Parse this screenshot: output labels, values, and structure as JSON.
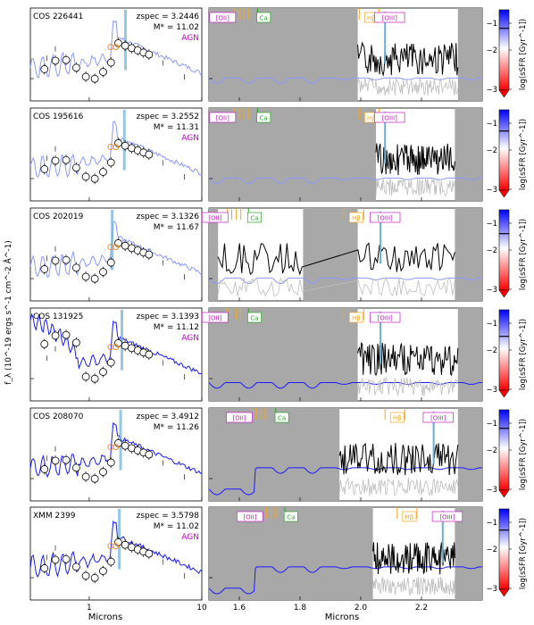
{
  "figure": {
    "ylabel": "f_λ (10^-19 ergs s^-1 cm^-2 Å^-1)",
    "xlabel_left": "Microns",
    "xlabel_right": "Microns",
    "colorbar_label": "log(sSFR [Gyr^-1])",
    "colorbar_ticks": [
      "−1",
      "−2",
      "−3"
    ],
    "colors": {
      "photometry_model_light": "#8c98ff",
      "photometry_model_dark": "#1a1aff",
      "spectrum": "#000000",
      "spectrum_error": "#bdbdbd",
      "masked_region": "#a8a8a8",
      "emission_line": "#6aaed6",
      "balmer_marker": "#f5a623",
      "ca_marker": "#2ca02c",
      "oxygen_marker": "#c020c0",
      "agn_text": "#cc00cc",
      "colorbar_top": "#0000ff",
      "colorbar_bottom": "#ff0000"
    }
  },
  "chart_data": [
    {
      "type": "scatter",
      "panel": "photometry",
      "xscale": "log",
      "xlim": [
        0.3,
        10
      ],
      "x_ticks": [
        "1",
        "10"
      ],
      "xlabel": "Microns",
      "galaxies": [
        {
          "id": "COS 226441",
          "zspec": "3.2446",
          "mass": "11.02",
          "agn": true
        },
        {
          "id": "COS 195616",
          "zspec": "3.2552",
          "mass": "11.31",
          "agn": true
        },
        {
          "id": "COS 202019",
          "zspec": "3.1326",
          "mass": "11.67",
          "agn": false
        },
        {
          "id": "COS 131925",
          "zspec": "3.1393",
          "mass": "11.12",
          "agn": true
        },
        {
          "id": "COS 208070",
          "zspec": "3.4912",
          "mass": "11.26",
          "agn": false
        },
        {
          "id": "XMM 2399",
          "zspec": "3.5798",
          "mass": "11.02",
          "agn": true
        }
      ],
      "labels": {
        "zspec_prefix": "z",
        "zspec_sub": "spec",
        "mass_prefix": "M",
        "mass_sub": "*",
        "agn": "AGN"
      }
    },
    {
      "type": "line",
      "panel": "spectrum",
      "xlim": [
        1.5,
        2.4
      ],
      "x_ticks": [
        "1.6",
        "1.8",
        "2.0",
        "2.2"
      ],
      "xlabel": "Microns",
      "line_tags": [
        "[OII]",
        "Ca",
        "Hβ",
        "[OIII]"
      ],
      "rows": [
        {
          "id": "COS 226441",
          "tags_x": [
            1.545,
            1.68,
            2.035,
            2.095
          ]
        },
        {
          "id": "COS 195616",
          "tags_x": [
            1.545,
            1.68,
            2.035,
            2.095
          ]
        },
        {
          "id": "COS 202019",
          "tags_x": [
            1.52,
            1.65,
            1.985,
            2.08
          ]
        },
        {
          "id": "COS 131925",
          "tags_x": [
            1.52,
            1.65,
            1.985,
            2.08
          ]
        },
        {
          "id": "COS 208070",
          "tags_x": [
            1.6,
            1.74,
            2.12,
            2.255
          ]
        },
        {
          "id": "XMM 2399",
          "tags_x": [
            1.635,
            1.77,
            2.16,
            2.285
          ]
        }
      ]
    }
  ]
}
